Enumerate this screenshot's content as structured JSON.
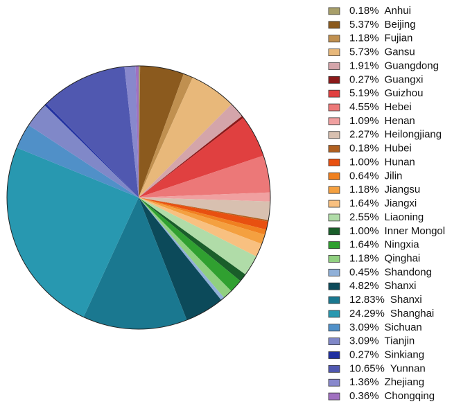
{
  "chart_data": {
    "type": "pie",
    "categories": [
      "Anhui",
      "Beijing",
      "Fujian",
      "Gansu",
      "Guangdong",
      "Guangxi",
      "Guizhou",
      "Hebei",
      "Henan",
      "Heilongjiang",
      "Hubei",
      "Hunan",
      "Jilin",
      "Jiangsu",
      "Jiangxi",
      "Liaoning",
      "Inner Mongol",
      "Ningxia",
      "Qinghai",
      "Shandong",
      "Shanxi",
      "Shanxi",
      "Shanghai",
      "Sichuan",
      "Tianjin",
      "Sinkiang",
      "Yunnan",
      "Zhejiang",
      "Chongqing"
    ],
    "values": [
      0.18,
      5.37,
      1.18,
      5.73,
      1.91,
      0.27,
      5.19,
      4.55,
      1.09,
      2.27,
      0.18,
      1.0,
      0.64,
      1.18,
      1.64,
      2.55,
      1.0,
      1.64,
      1.18,
      0.45,
      4.82,
      12.83,
      24.29,
      3.09,
      3.09,
      0.27,
      10.65,
      1.36,
      0.36
    ],
    "value_labels": [
      "0.18%",
      "5.37%",
      "1.18%",
      "5.73%",
      "1.91%",
      "0.27%",
      "5.19%",
      "4.55%",
      "1.09%",
      "2.27%",
      "0.18%",
      "1.00%",
      "0.64%",
      "1.18%",
      "1.64%",
      "2.55%",
      "1.00%",
      "1.64%",
      "1.18%",
      "0.45%",
      "4.82%",
      "12.83%",
      "24.29%",
      "3.09%",
      "3.09%",
      "0.27%",
      "10.65%",
      "1.36%",
      "0.36%"
    ],
    "colors": [
      "#a89f6a",
      "#8b5a1e",
      "#c09050",
      "#e8b87a",
      "#d4a5aa",
      "#8b1a1a",
      "#e04040",
      "#ec7878",
      "#f0a0a0",
      "#d8c0b0",
      "#b06020",
      "#e85010",
      "#f08020",
      "#f4a040",
      "#f8c080",
      "#b0dca8",
      "#1a5e2a",
      "#30a030",
      "#90d080",
      "#90b0d8",
      "#0c4a5a",
      "#1a7890",
      "#2898b0",
      "#5090c8",
      "#8088c8",
      "#2030a0",
      "#5058b0",
      "#8888cc",
      "#a070c0"
    ]
  }
}
